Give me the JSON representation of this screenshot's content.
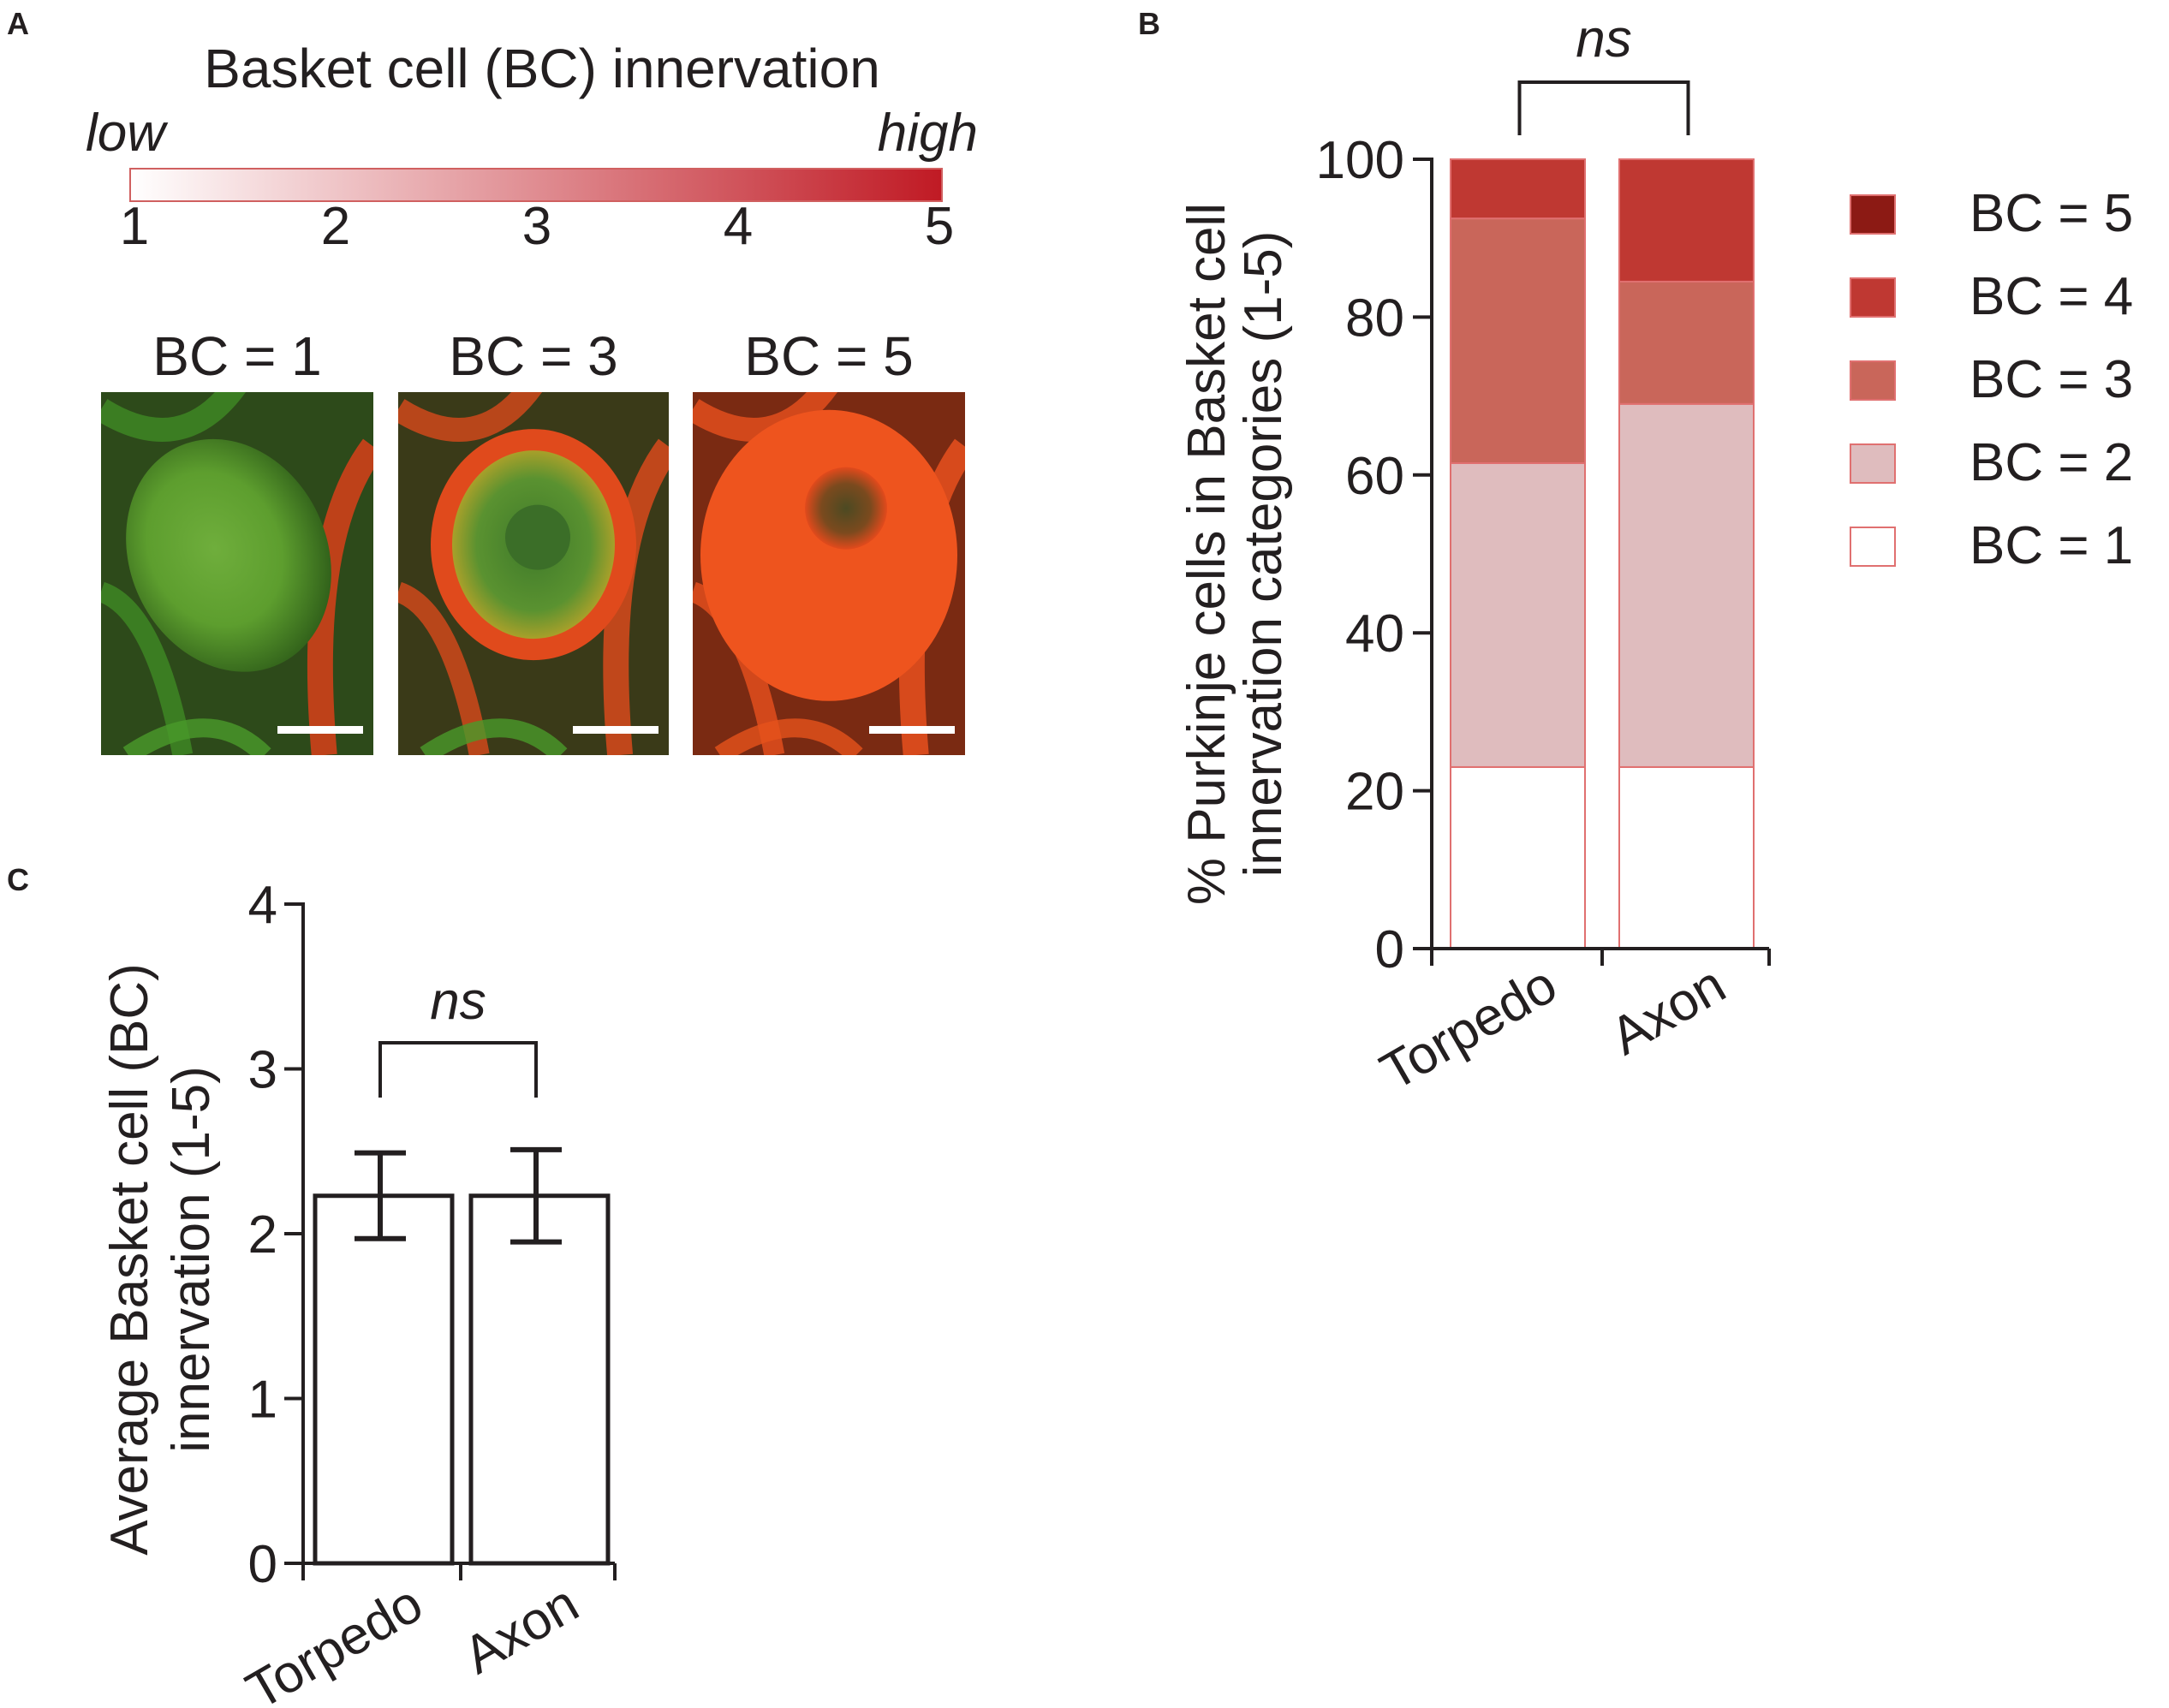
{
  "panels": {
    "a": {
      "letter": "A",
      "colorbar": {
        "title": "Basket cell (BC) innervation",
        "low_label": "low",
        "high_label": "high",
        "ticks": [
          "1",
          "2",
          "3",
          "4",
          "5"
        ],
        "color_low": "#ffffff",
        "color_high": "#c01a24"
      },
      "images": [
        {
          "label": "BC = 1",
          "level": 1
        },
        {
          "label": "BC = 3",
          "level": 3
        },
        {
          "label": "BC = 5",
          "level": 5
        }
      ]
    },
    "b": {
      "letter": "B"
    },
    "c": {
      "letter": "C"
    }
  },
  "chart_data": [
    {
      "id": "panel-b",
      "type": "bar",
      "stacked": true,
      "categories": [
        "Torpedo",
        "Axon"
      ],
      "series": [
        {
          "name": "BC = 1",
          "values": [
            23,
            23
          ],
          "color": "#ffffff"
        },
        {
          "name": "BC = 2",
          "values": [
            38.5,
            46
          ],
          "color": "#dfbcbe"
        },
        {
          "name": "BC = 3",
          "values": [
            31,
            15.5
          ],
          "color": "#c9665a"
        },
        {
          "name": "BC = 4",
          "values": [
            7.5,
            15.5
          ],
          "color": "#bf3832"
        },
        {
          "name": "BC = 5",
          "values": [
            0,
            0
          ],
          "color": "#8c1a14"
        }
      ],
      "ylabel_lines": [
        "% Purkinje cells in Basket cell",
        "innervation categories (1-5)"
      ],
      "yticks": [
        "0",
        "20",
        "40",
        "60",
        "80",
        "100"
      ],
      "ylim": [
        0,
        100
      ],
      "significance": "ns",
      "legend_position": "right",
      "outline_color": "#e07070"
    },
    {
      "id": "panel-c",
      "type": "bar",
      "categories": [
        "Torpedo",
        "Axon"
      ],
      "values": [
        2.23,
        2.23
      ],
      "errors": [
        0.26,
        0.28
      ],
      "ylabel_lines": [
        "Average Basket cell (BC)",
        "innervation (1-5)"
      ],
      "yticks": [
        "0",
        "1",
        "2",
        "3",
        "4"
      ],
      "ylim": [
        0,
        4
      ],
      "significance": "ns"
    }
  ]
}
